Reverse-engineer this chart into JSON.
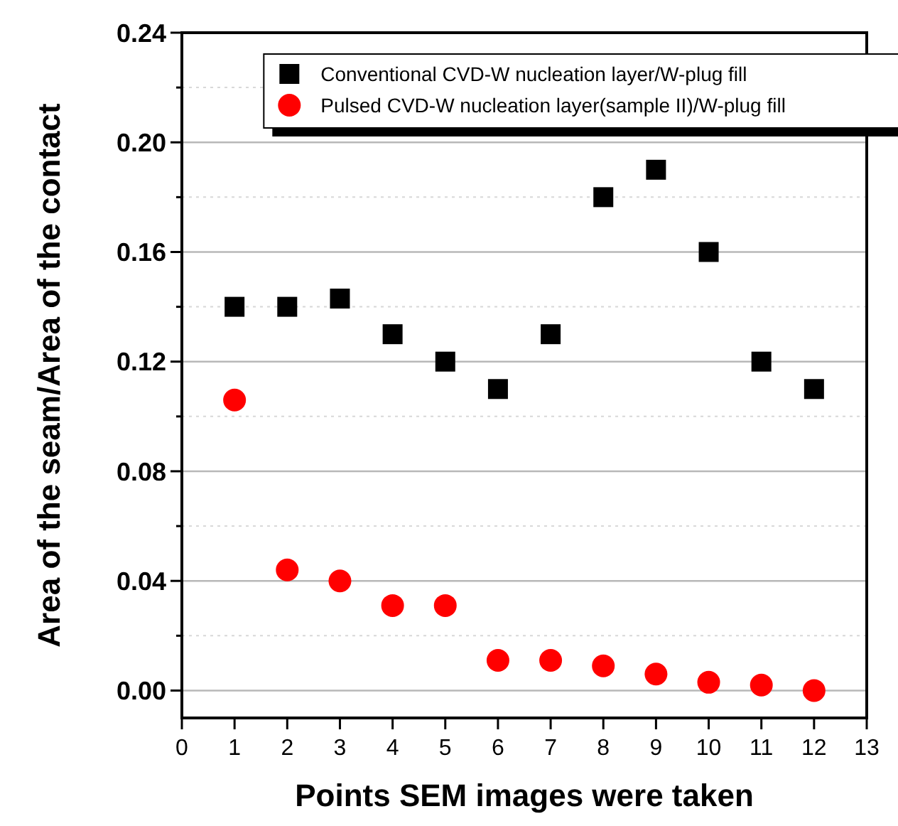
{
  "chart_data": {
    "type": "scatter",
    "xlabel": "Points SEM images were taken",
    "ylabel": "Area of the seam/Area of the contact",
    "x": [
      1,
      2,
      3,
      4,
      5,
      6,
      7,
      8,
      9,
      10,
      11,
      12
    ],
    "series": [
      {
        "name": "Conventional CVD-W nucleation layer/W-plug fill",
        "color": "#000000",
        "marker": "square",
        "values": [
          0.14,
          0.14,
          0.143,
          0.13,
          0.12,
          0.11,
          0.13,
          0.18,
          0.19,
          0.16,
          0.12,
          0.11
        ]
      },
      {
        "name": "Pulsed CVD-W nucleation layer(sample II)/W-plug fill",
        "color": "#ff0000",
        "marker": "circle",
        "values": [
          0.106,
          0.044,
          0.04,
          0.031,
          0.031,
          0.011,
          0.011,
          0.009,
          0.006,
          0.003,
          0.002,
          0.0
        ]
      }
    ],
    "xlim": [
      0,
      13
    ],
    "xticks": [
      0,
      1,
      2,
      3,
      4,
      5,
      6,
      7,
      8,
      9,
      10,
      11,
      12,
      13
    ],
    "ylim": [
      -0.01,
      0.24
    ],
    "yticks": [
      {
        "value": 0,
        "label": "0.00"
      },
      {
        "value": 0.02,
        "label": null
      },
      {
        "value": 0.04,
        "label": "0.04"
      },
      {
        "value": 0.06,
        "label": null
      },
      {
        "value": 0.08,
        "label": "0.08"
      },
      {
        "value": 0.1,
        "label": null
      },
      {
        "value": 0.12,
        "label": "0.12"
      },
      {
        "value": 0.14,
        "label": null
      },
      {
        "value": 0.16,
        "label": "0.16"
      },
      {
        "value": 0.18,
        "label": null
      },
      {
        "value": 0.2,
        "label": "0.20"
      },
      {
        "value": 0.22,
        "label": null
      },
      {
        "value": 0.24,
        "label": "0.24"
      }
    ],
    "grid": "y",
    "legend": "top"
  }
}
